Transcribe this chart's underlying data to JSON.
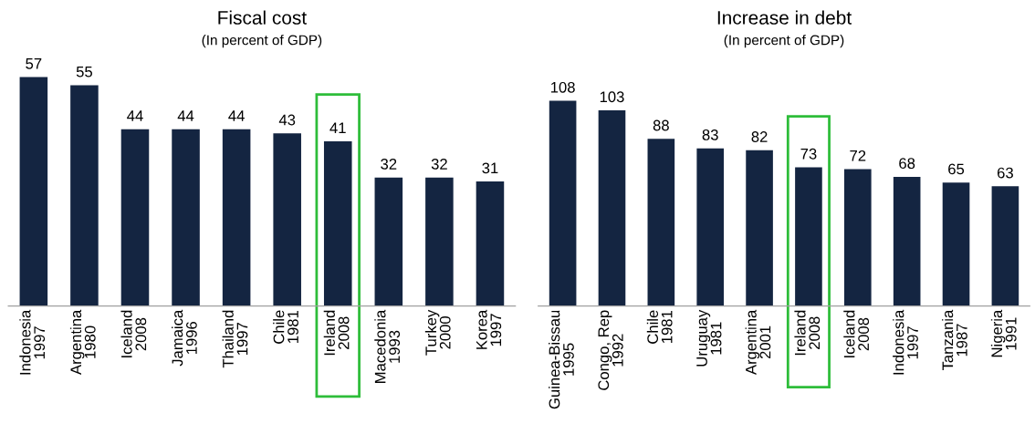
{
  "chart_data": [
    {
      "type": "bar",
      "title": "Fiscal cost",
      "subtitle": "(In percent of GDP)",
      "categories": [
        "Indonesia\n1997",
        "Argentina\n1980",
        "Iceland\n2008",
        "Jamaica\n1996",
        "Thailand\n1997",
        "Chile\n1981",
        "Ireland\n2008",
        "Macedonia\n1993",
        "Turkey\n2000",
        "Korea\n1997"
      ],
      "values": [
        57,
        55,
        44,
        44,
        44,
        43,
        41,
        32,
        32,
        31
      ],
      "color": "#142541",
      "data_labels": true,
      "tick_labels": "x"
    },
    {
      "type": "bar",
      "title": "Increase in debt",
      "subtitle": "(In percent of GDP)",
      "categories": [
        "Guinea-Bissau\n1995",
        "Congo, Rep\n1992",
        "Chile\n1981",
        "Uruguay\n1981",
        "Argentina\n2001",
        "Ireland\n2008",
        "Iceland\n2008",
        "Indonesia\n1997",
        "Tanzania\n1987",
        "Nigeria\n1991"
      ],
      "values": [
        108,
        103,
        88,
        83,
        82,
        73,
        72,
        68,
        65,
        63
      ],
      "color": "#142541",
      "data_labels": true,
      "tick_labels": "x"
    }
  ]
}
